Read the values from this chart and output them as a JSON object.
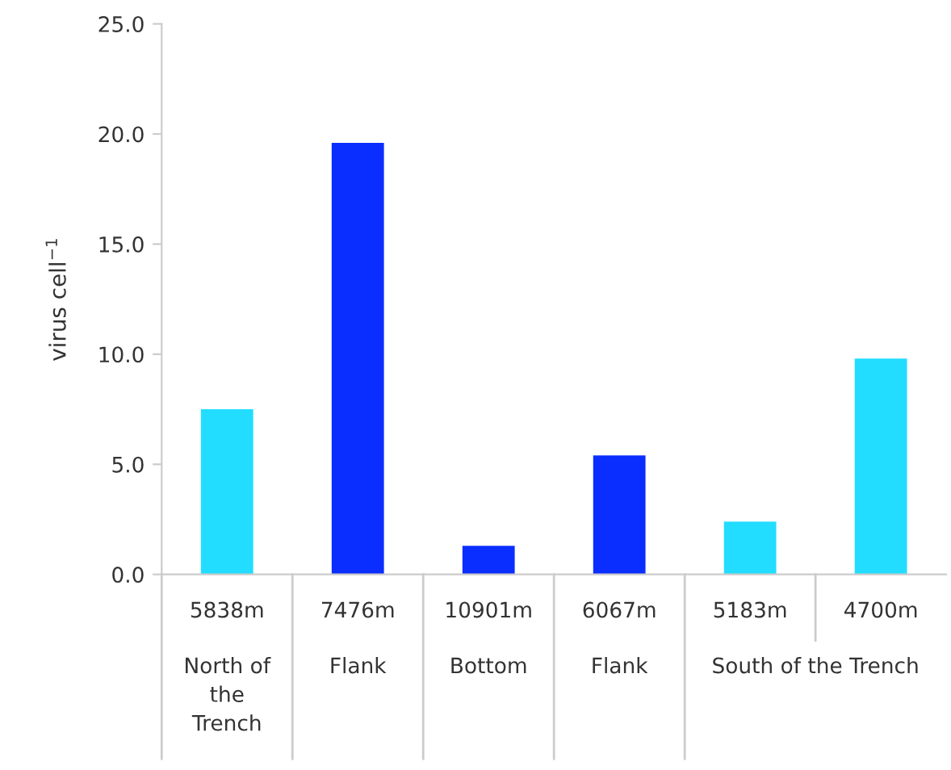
{
  "chart_data": {
    "type": "bar",
    "ylabel": "virus cell$^{−1}$",
    "categories": [
      "5838m",
      "7476m",
      "10901m",
      "6067m",
      "5183m",
      "4700m"
    ],
    "values": [
      7.5,
      19.6,
      1.3,
      5.4,
      2.4,
      9.8
    ],
    "colors": [
      "#22ddff",
      "#0a2eff",
      "#0a2eff",
      "#0a2eff",
      "#22ddff",
      "#22ddff"
    ],
    "ylim": [
      0,
      25
    ],
    "yticks": [
      {
        "value": 0,
        "label": "0.0"
      },
      {
        "value": 5,
        "label": "5.0"
      },
      {
        "value": 10,
        "label": "10.0"
      },
      {
        "value": 15,
        "label": "15.0"
      },
      {
        "value": 20,
        "label": "20.0"
      },
      {
        "value": 25,
        "label": "25.0"
      }
    ],
    "grid": false,
    "legend": false,
    "annotations": [
      "North of the Trench",
      "Flank",
      "Bottom",
      "Flank",
      "South of the Trench"
    ]
  }
}
